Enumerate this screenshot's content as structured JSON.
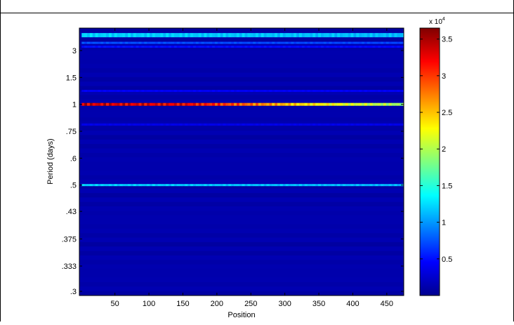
{
  "chart_data": {
    "type": "heatmap",
    "title": "",
    "xlabel": "Position",
    "ylabel": "Period (days)",
    "x_range": [
      1,
      475
    ],
    "x_ticks": [
      50,
      100,
      150,
      200,
      250,
      300,
      350,
      400,
      450
    ],
    "y_ticks": [
      {
        "label": "3",
        "period": 3
      },
      {
        "label": "1.5",
        "period": 1.5
      },
      {
        "label": "1",
        "period": 1
      },
      {
        "label": ".75",
        "period": 0.75
      },
      {
        "label": ".6",
        "period": 0.6
      },
      {
        "label": ".5",
        "period": 0.5
      },
      {
        "label": ".43",
        "period": 0.43
      },
      {
        "label": ".375",
        "period": 0.375
      },
      {
        "label": ".333",
        "period": 0.333
      },
      {
        "label": ".3",
        "period": 0.3
      }
    ],
    "y_scale": "reciprocal (frequency-linear)",
    "colormap": "jet",
    "colorbar": {
      "multiplier": "x 10",
      "exponent": "4",
      "range": [
        0,
        36500
      ],
      "tick_labels": [
        "0.5",
        "1",
        "1.5",
        "2",
        "2.5",
        "3",
        "3.5"
      ],
      "tick_values": [
        0.5,
        1,
        1.5,
        2,
        2.5,
        3,
        3.5
      ]
    },
    "background_level": 1500,
    "bands": [
      {
        "period": 1.0,
        "values_by_position": [
          [
            1,
            36000
          ],
          [
            150,
            35000
          ],
          [
            250,
            30000
          ],
          [
            320,
            26000
          ],
          [
            400,
            23000
          ],
          [
            460,
            21000
          ],
          [
            475,
            20000
          ]
        ]
      },
      {
        "period": 0.5,
        "values_by_position": [
          [
            1,
            13000
          ],
          [
            475,
            12000
          ]
        ]
      },
      {
        "period": 7.0,
        "values_by_position": [
          [
            1,
            13000
          ],
          [
            475,
            12000
          ]
        ]
      },
      {
        "period": 4.2,
        "values_by_position": [
          [
            1,
            8000
          ],
          [
            475,
            7500
          ]
        ]
      },
      {
        "period": 3.5,
        "values_by_position": [
          [
            1,
            5500
          ],
          [
            475,
            5000
          ]
        ]
      },
      {
        "period": 1.2,
        "values_by_position": [
          [
            1,
            4500
          ],
          [
            475,
            4500
          ]
        ]
      },
      {
        "period": 0.8,
        "values_by_position": [
          [
            1,
            4000
          ],
          [
            475,
            4000
          ]
        ]
      }
    ]
  }
}
